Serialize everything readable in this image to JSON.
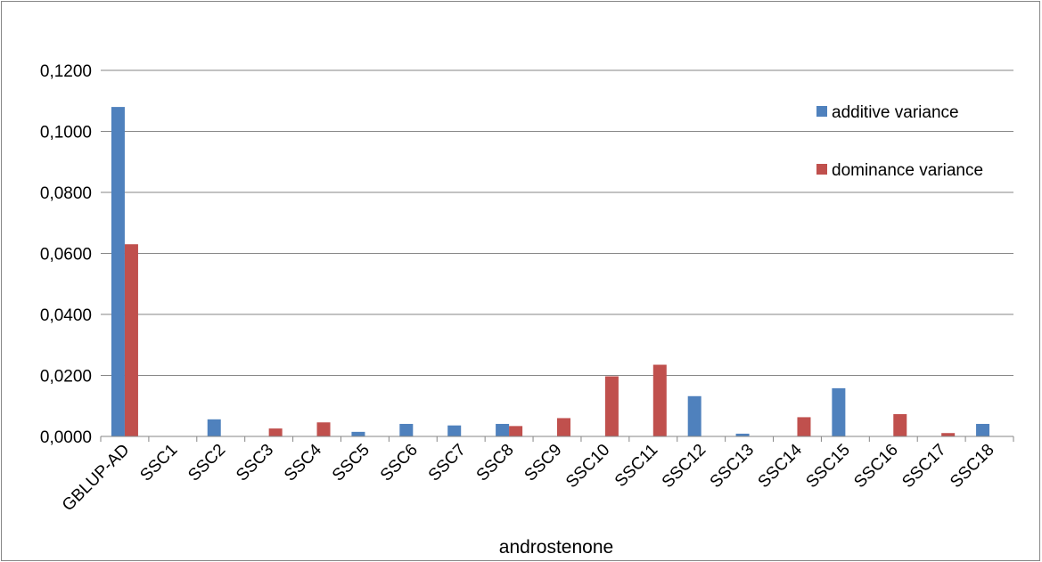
{
  "chart_data": {
    "type": "bar",
    "title": "",
    "xlabel": "androstenone",
    "ylabel": "",
    "ylim": [
      0,
      0.12
    ],
    "yticks": [
      "0,0000",
      "0,0200",
      "0,0400",
      "0,0600",
      "0,0800",
      "0,1000",
      "0,1200"
    ],
    "grid": true,
    "legend_position": "top-right",
    "categories": [
      "GBLUP-AD",
      "SSC1",
      "SSC2",
      "SSC3",
      "SSC4",
      "SSC5",
      "SSC6",
      "SSC7",
      "SSC8",
      "SSC9",
      "SSC10",
      "SSC11",
      "SSC12",
      "SSC13",
      "SSC14",
      "SSC15",
      "SSC16",
      "SSC17",
      "SSC18"
    ],
    "series": [
      {
        "name": "additive variance",
        "color": "#4F81BD",
        "values": [
          0.108,
          0.0,
          0.0056,
          0.0,
          0.0,
          0.0015,
          0.0041,
          0.0036,
          0.0041,
          0.0,
          0.0,
          0.0,
          0.0132,
          0.0009,
          0.0,
          0.0158,
          0.0,
          0.0,
          0.0041
        ]
      },
      {
        "name": "dominance variance",
        "color": "#C0504D",
        "values": [
          0.063,
          0.0,
          0.0,
          0.0026,
          0.0046,
          0.0,
          0.0,
          0.0,
          0.0034,
          0.006,
          0.0197,
          0.0235,
          0.0,
          0.0,
          0.0063,
          0.0,
          0.0073,
          0.0011,
          0.0
        ]
      }
    ]
  }
}
